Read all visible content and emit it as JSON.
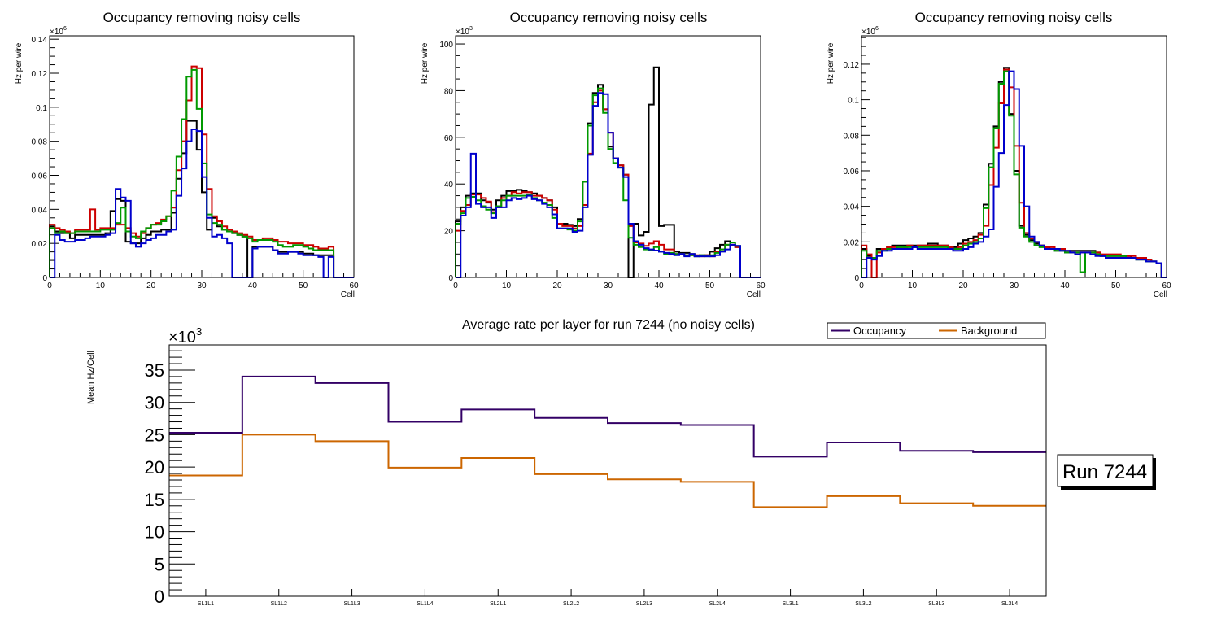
{
  "chart_data": [
    {
      "id": "panel-1",
      "type": "line",
      "style": "step-histogram",
      "title": "Occupancy removing noisy cells",
      "xlabel": "Cell",
      "ylabel": "Hz per wire",
      "y_multiplier_label": "×10^6",
      "y_exponent_base": "×10",
      "y_exponent": "6",
      "xlim": [
        0,
        60
      ],
      "ylim": [
        0,
        0.142
      ],
      "xticks": [
        0,
        10,
        20,
        30,
        40,
        50,
        60
      ],
      "xtick_labels": [
        "0",
        "10",
        "20",
        "30",
        "40",
        "50",
        "60"
      ],
      "yticks": [
        0,
        0.02,
        0.04,
        0.06,
        0.08,
        0.1,
        0.12,
        0.14
      ],
      "ytick_labels": [
        "0",
        "0.02",
        "0.04",
        "0.06",
        "0.08",
        "0.1",
        "0.12",
        "0.14"
      ],
      "grid": false,
      "bin_edges_start": 0,
      "bin_width": 1,
      "series": [
        {
          "name": "black",
          "color": "#000000",
          "values": [
            0.03,
            0.027,
            0.026,
            0.026,
            0.023,
            0.025,
            0.025,
            0.025,
            0.025,
            0.025,
            0.025,
            0.026,
            0.039,
            0.046,
            0.045,
            0.021,
            0.02,
            0.02,
            0.023,
            0.025,
            0.027,
            0.027,
            0.028,
            0.028,
            0.038,
            0.058,
            0.073,
            0.092,
            0.092,
            0.075,
            0.05,
            0.028,
            0.035,
            0.03,
            0.028,
            0.027,
            0.026,
            0.025,
            0.024,
            0.0,
            0.018,
            0.018,
            0.018,
            0.018,
            0.016,
            0.015,
            0.015,
            0.015,
            0.015,
            0.015,
            0.014,
            0.014,
            0.013,
            0.013,
            0.013,
            0.013,
            0,
            0,
            0,
            0
          ]
        },
        {
          "name": "red",
          "color": "#cc0000",
          "values": [
            0.031,
            0.029,
            0.028,
            0.027,
            0.026,
            0.028,
            0.028,
            0.028,
            0.04,
            0.028,
            0.029,
            0.029,
            0.029,
            0.031,
            0.031,
            0.029,
            0.026,
            0.024,
            0.026,
            0.029,
            0.031,
            0.032,
            0.034,
            0.036,
            0.041,
            0.063,
            0.08,
            0.104,
            0.124,
            0.123,
            0.084,
            0.052,
            0.036,
            0.033,
            0.03,
            0.028,
            0.027,
            0.026,
            0.025,
            0.024,
            0.022,
            0.022,
            0.023,
            0.023,
            0.022,
            0.021,
            0.021,
            0.02,
            0.02,
            0.02,
            0.019,
            0.019,
            0.018,
            0.017,
            0.017,
            0.018,
            0,
            0,
            0,
            0
          ]
        },
        {
          "name": "green",
          "color": "#009900",
          "values": [
            0.029,
            0.026,
            0.027,
            0.026,
            0.026,
            0.027,
            0.027,
            0.027,
            0.027,
            0.027,
            0.028,
            0.028,
            0.028,
            0.032,
            0.041,
            0.027,
            0.024,
            0.023,
            0.027,
            0.029,
            0.031,
            0.031,
            0.033,
            0.036,
            0.051,
            0.071,
            0.093,
            0.118,
            0.122,
            0.099,
            0.067,
            0.037,
            0.032,
            0.031,
            0.028,
            0.027,
            0.026,
            0.025,
            0.024,
            0.023,
            0.021,
            0.022,
            0.022,
            0.022,
            0.021,
            0.019,
            0.018,
            0.018,
            0.019,
            0.019,
            0.018,
            0.017,
            0.016,
            0.016,
            0.016,
            0.016,
            0,
            0,
            0,
            0
          ]
        },
        {
          "name": "blue",
          "color": "#0000cc",
          "values": [
            0.0,
            0.025,
            0.022,
            0.021,
            0.021,
            0.022,
            0.022,
            0.023,
            0.024,
            0.024,
            0.024,
            0.025,
            0.026,
            0.052,
            0.047,
            0.045,
            0.02,
            0.018,
            0.02,
            0.022,
            0.023,
            0.025,
            0.025,
            0.027,
            0.028,
            0.048,
            0.064,
            0.08,
            0.087,
            0.086,
            0.059,
            0.035,
            0.024,
            0.025,
            0.023,
            0.02,
            0.0,
            0.0,
            0.0,
            0.0,
            0.017,
            0.018,
            0.018,
            0.018,
            0.016,
            0.014,
            0.014,
            0.015,
            0.015,
            0.014,
            0.013,
            0.013,
            0.013,
            0.012,
            0.0,
            0.012,
            0,
            0,
            0,
            0
          ]
        }
      ]
    },
    {
      "id": "panel-2",
      "type": "line",
      "style": "step-histogram",
      "title": "Occupancy removing noisy cells",
      "xlabel": "Cell",
      "ylabel": "Hz per wire",
      "y_multiplier_label": "×10^3",
      "y_exponent_base": "×10",
      "y_exponent": "3",
      "xlim": [
        0,
        60
      ],
      "ylim": [
        0,
        103.5
      ],
      "xticks": [
        0,
        10,
        20,
        30,
        40,
        50,
        60
      ],
      "xtick_labels": [
        "0",
        "10",
        "20",
        "30",
        "40",
        "50",
        "60"
      ],
      "yticks": [
        0,
        20,
        40,
        60,
        80,
        100
      ],
      "ytick_labels": [
        "0",
        "20",
        "40",
        "60",
        "80",
        "100"
      ],
      "grid": false,
      "bin_edges_start": 0,
      "bin_width": 1,
      "series": [
        {
          "name": "black",
          "color": "#000000",
          "values": [
            24,
            30,
            35,
            36,
            36,
            33,
            32,
            29,
            33,
            35,
            37,
            37,
            37.5,
            37,
            36.5,
            36,
            35,
            34,
            33,
            30,
            23,
            23,
            22.5,
            22,
            25,
            41,
            66,
            79,
            82.5,
            72,
            56,
            51,
            48,
            44,
            0,
            23,
            18,
            19.5,
            74,
            90,
            22,
            22.5,
            22.5,
            11,
            10.5,
            10.5,
            10,
            9,
            9.5,
            9.5,
            11,
            12.5,
            14,
            15.5,
            14,
            13,
            0,
            0,
            0,
            0
          ]
        },
        {
          "name": "red",
          "color": "#cc0000",
          "values": [
            20,
            28.5,
            31,
            35.5,
            35.5,
            34,
            32.5,
            28,
            30,
            34,
            35,
            36.5,
            36,
            36.5,
            36.5,
            35,
            35,
            34,
            33,
            29,
            23,
            22,
            22,
            21,
            22,
            31,
            53,
            75,
            80,
            72,
            62,
            51,
            48,
            44,
            22,
            15,
            14.5,
            13.5,
            14.5,
            15.5,
            14,
            12,
            12,
            10,
            10,
            9.5,
            9.5,
            9.5,
            9,
            9.5,
            9,
            11,
            12,
            14,
            14,
            13,
            0,
            0,
            0,
            0
          ]
        },
        {
          "name": "green",
          "color": "#009900",
          "values": [
            23,
            27.5,
            34,
            34.5,
            33,
            30.5,
            29,
            27.5,
            30.5,
            33,
            35,
            35,
            35,
            35,
            35.5,
            34,
            33,
            32,
            31,
            25.5,
            21,
            21,
            20.5,
            20,
            24,
            41,
            65,
            78,
            81,
            70.5,
            55,
            49,
            47,
            33,
            17,
            14,
            13,
            12,
            11.5,
            13,
            11,
            10,
            10.5,
            10,
            10,
            9.5,
            9.5,
            9,
            9.5,
            9,
            9.5,
            10.5,
            12,
            14,
            15,
            13.5,
            0,
            0,
            0,
            0
          ]
        },
        {
          "name": "blue",
          "color": "#0000cc",
          "values": [
            0,
            26.5,
            30,
            53,
            31.5,
            30,
            30,
            25.5,
            30,
            30,
            33,
            34,
            33.5,
            34,
            35,
            33.5,
            33,
            31.5,
            30,
            27,
            21,
            21,
            21,
            19.5,
            20,
            30,
            52.5,
            73.5,
            79,
            78.5,
            62,
            51,
            47,
            43,
            23,
            15.5,
            14,
            12.5,
            12,
            11.5,
            11,
            10.5,
            10,
            9.5,
            10,
            9,
            10,
            9,
            9,
            9,
            9,
            9.5,
            11,
            12,
            14,
            13.5,
            0,
            0,
            0,
            0
          ]
        }
      ]
    },
    {
      "id": "panel-3",
      "type": "line",
      "style": "step-histogram",
      "title": "Occupancy removing noisy cells",
      "xlabel": "Cell",
      "ylabel": "Hz per wire",
      "y_multiplier_label": "×10^6",
      "y_exponent_base": "×10",
      "y_exponent": "6",
      "xlim": [
        0,
        60
      ],
      "ylim": [
        0,
        0.136
      ],
      "xticks": [
        0,
        10,
        20,
        30,
        40,
        50,
        60
      ],
      "xtick_labels": [
        "0",
        "10",
        "20",
        "30",
        "40",
        "50",
        "60"
      ],
      "yticks": [
        0,
        0.02,
        0.04,
        0.06,
        0.08,
        0.1,
        0.12
      ],
      "ytick_labels": [
        "0",
        "0.02",
        "0.04",
        "0.06",
        "0.08",
        "0.1",
        "0.12"
      ],
      "grid": false,
      "bin_edges_start": 0,
      "bin_width": 1,
      "series": [
        {
          "name": "black",
          "color": "#000000",
          "values": [
            0.016,
            0.012,
            0.011,
            0.016,
            0.016,
            0.017,
            0.018,
            0.018,
            0.018,
            0.018,
            0.018,
            0.018,
            0.018,
            0.019,
            0.019,
            0.018,
            0.018,
            0.017,
            0.017,
            0.019,
            0.021,
            0.022,
            0.023,
            0.025,
            0.041,
            0.064,
            0.085,
            0.11,
            0.118,
            0.092,
            0.06,
            0.029,
            0.024,
            0.021,
            0.019,
            0.018,
            0.017,
            0.016,
            0.015,
            0.015,
            0.014,
            0.015,
            0.015,
            0.015,
            0.015,
            0.015,
            0.014,
            0.012,
            0.012,
            0.012,
            0.012,
            0.012,
            0.012,
            0.011,
            0.01,
            0.01,
            0.01,
            0.009,
            0.008,
            0.0
          ]
        },
        {
          "name": "red",
          "color": "#cc0000",
          "values": [
            0.018,
            0.013,
            0.0,
            0.014,
            0.016,
            0.017,
            0.017,
            0.017,
            0.017,
            0.018,
            0.017,
            0.018,
            0.018,
            0.018,
            0.018,
            0.018,
            0.018,
            0.017,
            0.016,
            0.017,
            0.019,
            0.02,
            0.021,
            0.024,
            0.029,
            0.052,
            0.073,
            0.098,
            0.117,
            0.107,
            0.074,
            0.042,
            0.025,
            0.022,
            0.02,
            0.018,
            0.017,
            0.017,
            0.016,
            0.016,
            0.015,
            0.014,
            0.014,
            0.014,
            0.014,
            0.014,
            0.014,
            0.013,
            0.013,
            0.013,
            0.013,
            0.012,
            0.012,
            0.012,
            0.011,
            0.011,
            0.01,
            0.009,
            0.008,
            0.0
          ]
        },
        {
          "name": "green",
          "color": "#009900",
          "values": [
            0.015,
            0.011,
            0.011,
            0.015,
            0.015,
            0.016,
            0.016,
            0.017,
            0.017,
            0.017,
            0.017,
            0.017,
            0.017,
            0.017,
            0.017,
            0.017,
            0.017,
            0.016,
            0.016,
            0.016,
            0.018,
            0.019,
            0.02,
            0.022,
            0.039,
            0.062,
            0.084,
            0.109,
            0.116,
            0.091,
            0.058,
            0.028,
            0.023,
            0.02,
            0.018,
            0.017,
            0.016,
            0.016,
            0.015,
            0.015,
            0.014,
            0.014,
            0.014,
            0.003,
            0.014,
            0.014,
            0.013,
            0.012,
            0.012,
            0.012,
            0.012,
            0.012,
            0.011,
            0.011,
            0.01,
            0.01,
            0.009,
            0.009,
            0.008,
            0.0
          ]
        },
        {
          "name": "blue",
          "color": "#0000cc",
          "values": [
            0.0,
            0.011,
            0.01,
            0.012,
            0.015,
            0.015,
            0.016,
            0.016,
            0.016,
            0.016,
            0.017,
            0.016,
            0.016,
            0.016,
            0.016,
            0.016,
            0.016,
            0.016,
            0.015,
            0.015,
            0.016,
            0.017,
            0.019,
            0.02,
            0.023,
            0.027,
            0.051,
            0.07,
            0.097,
            0.116,
            0.106,
            0.074,
            0.04,
            0.023,
            0.02,
            0.018,
            0.016,
            0.016,
            0.016,
            0.015,
            0.015,
            0.014,
            0.013,
            0.014,
            0.014,
            0.013,
            0.012,
            0.012,
            0.011,
            0.011,
            0.011,
            0.011,
            0.011,
            0.011,
            0.01,
            0.01,
            0.009,
            0.009,
            0.008,
            0.0
          ]
        }
      ]
    },
    {
      "id": "panel-4",
      "type": "line",
      "style": "step-histogram",
      "title": "Average rate per layer for run 7244 (no noisy cells)",
      "xlabel": "",
      "ylabel": "Mean Hz/Cell",
      "y_multiplier_label": "×10^3",
      "y_exponent_base": "×10",
      "y_exponent": "3",
      "categories": [
        "SL1L1",
        "SL1L2",
        "SL1L3",
        "SL1L4",
        "SL2L1",
        "SL2L2",
        "SL2L3",
        "SL2L4",
        "SL3L1",
        "SL3L2",
        "SL3L3",
        "SL3L4"
      ],
      "ylim": [
        0,
        38.9
      ],
      "yticks": [
        0,
        5,
        10,
        15,
        20,
        25,
        30,
        35
      ],
      "ytick_labels": [
        "0",
        "5",
        "10",
        "15",
        "20",
        "25",
        "30",
        "35"
      ],
      "grid": false,
      "legend": {
        "placement": "top-right",
        "entries": [
          {
            "label": "Occupancy",
            "color": "#330066"
          },
          {
            "label": "Background",
            "color": "#cc6600"
          }
        ]
      },
      "series": [
        {
          "name": "Occupancy",
          "color": "#330066",
          "values": [
            25.3,
            34.0,
            33.0,
            27.0,
            28.9,
            27.6,
            26.8,
            26.5,
            21.6,
            23.8,
            22.5,
            22.3
          ]
        },
        {
          "name": "Background",
          "color": "#cc6600",
          "values": [
            18.7,
            25.0,
            24.0,
            19.9,
            21.4,
            18.9,
            18.1,
            17.7,
            13.8,
            15.5,
            14.4,
            14.0
          ]
        }
      ]
    }
  ],
  "annotations": {
    "run_label": "Run 7244"
  }
}
